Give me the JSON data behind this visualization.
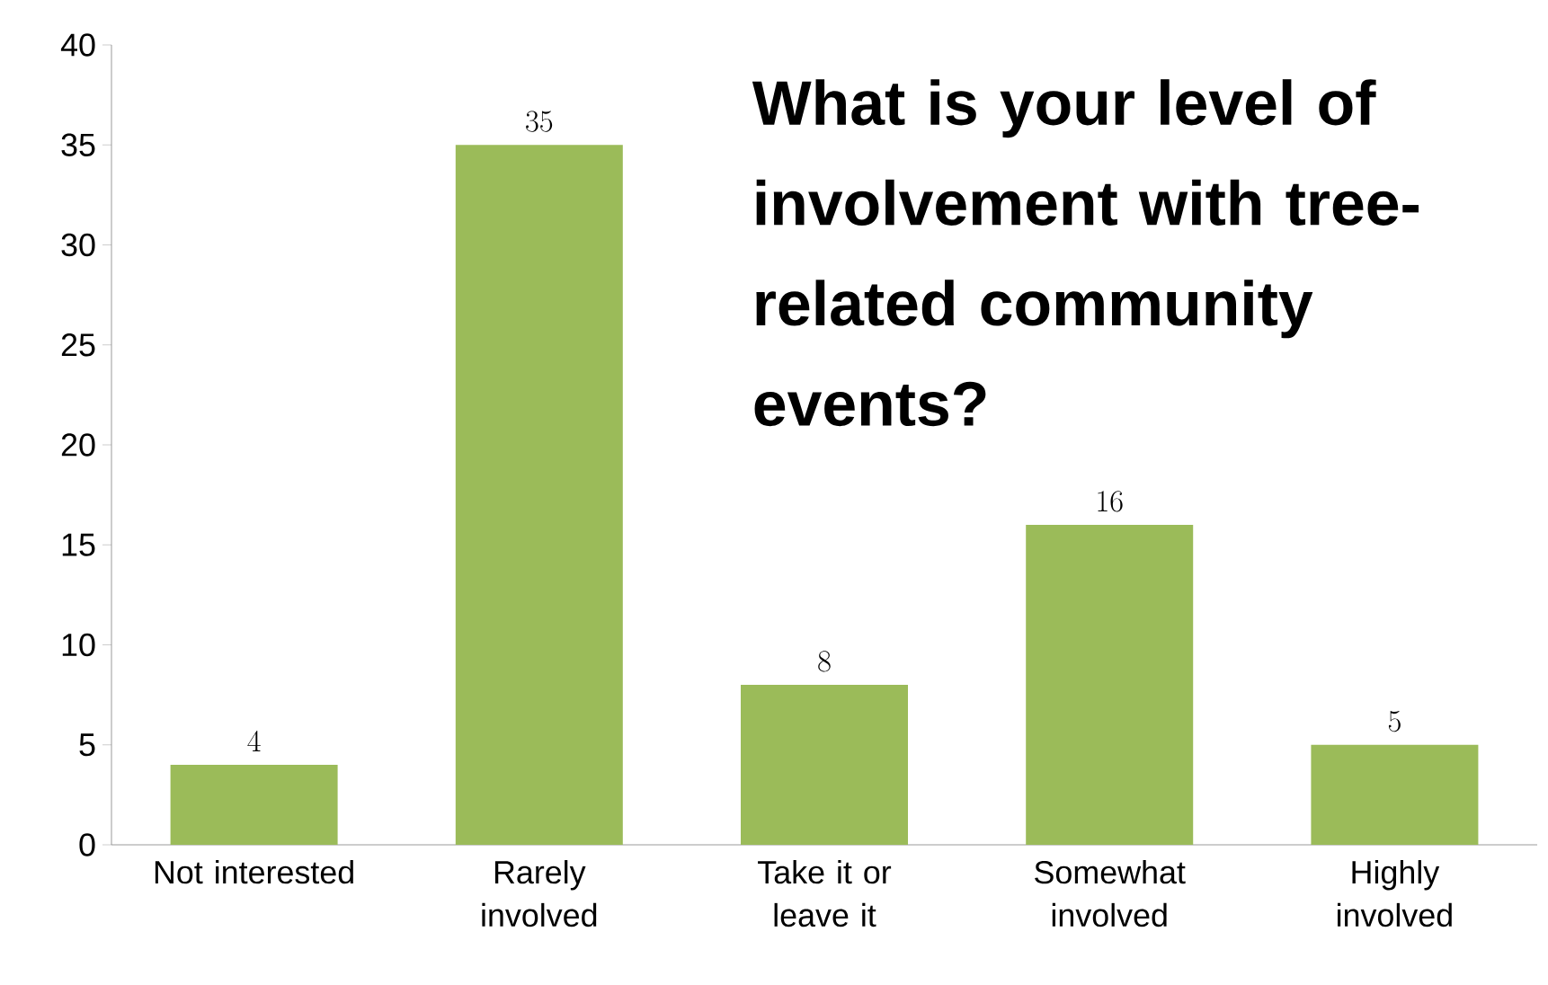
{
  "chart_data": {
    "type": "bar",
    "title": "What is your level of involvement with tree-related community events?",
    "categories": [
      "Not interested",
      "Rarely involved",
      "Take it or leave it",
      "Somewhat involved",
      "Highly involved"
    ],
    "values": [
      4,
      35,
      8,
      16,
      5
    ],
    "color": "#9bbb59",
    "ylim": [
      0,
      40
    ],
    "yticks": [
      0,
      5,
      10,
      15,
      20,
      25,
      30,
      35,
      40
    ],
    "data_labels": true
  }
}
